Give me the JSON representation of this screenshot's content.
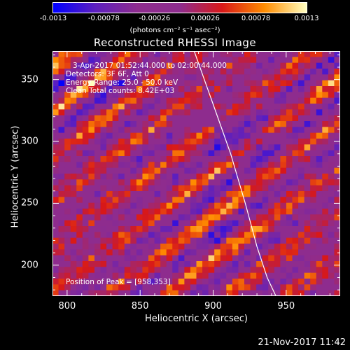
{
  "colorbar": {
    "ticks": [
      "-0.0013",
      "-0.00078",
      "-0.00026",
      "0.00026",
      "0.00078",
      "0.0013"
    ],
    "units_label": "(photons cm⁻² s⁻¹ asec⁻²)",
    "range": [
      -0.0013,
      0.0013
    ],
    "colormap": [
      "#0000ff",
      "#5d1fbf",
      "#8e2c8e",
      "#8e2c8e",
      "#d81818",
      "#ff8c00",
      "#ffffc0"
    ]
  },
  "chart_data": {
    "type": "heatmap",
    "title": "Reconstructed RHESSI Image",
    "xlabel": "Heliocentric X (arcsec)",
    "ylabel": "Heliocentric Y (arcsec)",
    "xlim": [
      790,
      987
    ],
    "ylim": [
      175,
      373
    ],
    "xticks": [
      "800",
      "850",
      "900",
      "950"
    ],
    "yticks": [
      "200",
      "250",
      "300",
      "350"
    ],
    "value_range": [
      -0.0013,
      0.0013
    ],
    "peak_position": [
      958,
      353
    ],
    "limb_curve": {
      "x": [
        887,
        900,
        912,
        922,
        930,
        937,
        943
      ],
      "y": [
        373,
        330,
        290,
        250,
        215,
        190,
        175
      ]
    },
    "annotations": [
      "3-Apr-2017 01:52:44.000 to 02:00:44.000",
      "Detectors: 3F 6F, Att 0",
      "Energy Range: 25.0 - 50.0 keV",
      "Clean    Total counts: 8.42E+03",
      "Position of Peak = [958,353]"
    ]
  },
  "footer": {
    "timestamp": "21-Nov-2017 11:42"
  }
}
